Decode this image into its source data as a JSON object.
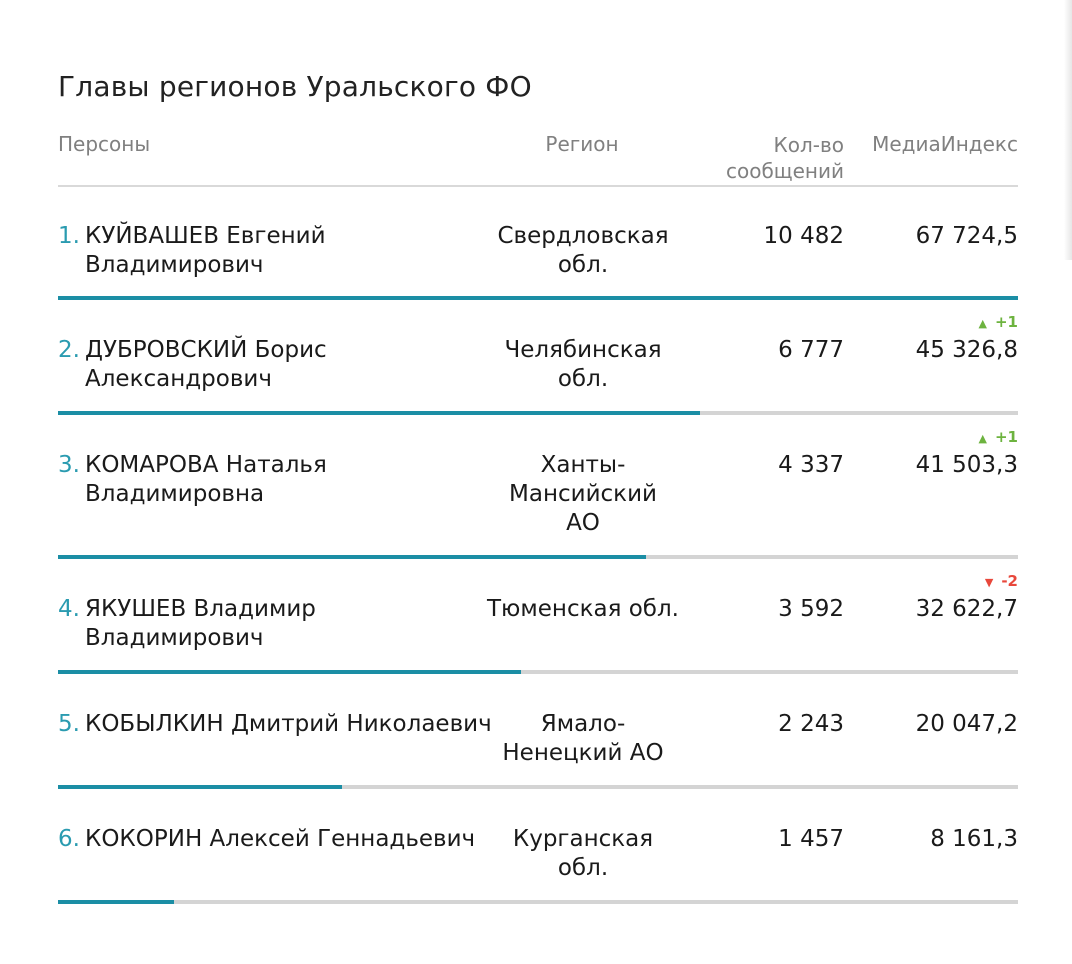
{
  "title": "Главы регионов Уральского ФО",
  "header": {
    "persons": "Персоны",
    "region": "Регион",
    "count": "Кол-во сообщений",
    "index": "МедиаИндекс"
  },
  "colors": {
    "accent": "#1b8ea5",
    "rank": "#2a9bb0",
    "up": "#6db33f",
    "down": "#e8473b",
    "bar_track": "#d4d4d4"
  },
  "rows": [
    {
      "rank": "1.",
      "name": "КУЙВАШЕВ Евгений Владимирович",
      "region": "Свердловская обл.",
      "count": "10 482",
      "index": "67 724,5",
      "delta": "",
      "delta_arrow": "",
      "bar_fraction": 1.0
    },
    {
      "rank": "2.",
      "name": "ДУБРОВСКИЙ Борис Александрович",
      "region": "Челябинская обл.",
      "count": "6 777",
      "index": "45 326,8",
      "delta": "+1",
      "delta_arrow": "▲",
      "bar_fraction": 0.669
    },
    {
      "rank": "3.",
      "name": "КОМАРОВА Наталья Владимировна",
      "region": "Ханты-Мансийский АО",
      "count": "4 337",
      "index": "41 503,3",
      "delta": "+1",
      "delta_arrow": "▲",
      "bar_fraction": 0.613
    },
    {
      "rank": "4.",
      "name": "ЯКУШЕВ Владимир Владимирович",
      "region": "Тюменская обл.",
      "count": "3 592",
      "index": "32 622,7",
      "delta": "-2",
      "delta_arrow": "▼",
      "bar_fraction": 0.482
    },
    {
      "rank": "5.",
      "name": "КОБЫЛКИН Дмитрий Николаевич",
      "region": "Ямало-Ненецкий АО",
      "count": "2 243",
      "index": "20 047,2",
      "delta": "",
      "delta_arrow": "",
      "bar_fraction": 0.296
    },
    {
      "rank": "6.",
      "name": "КОКОРИН Алексей Геннадьевич",
      "region": "Курганская обл.",
      "count": "1 457",
      "index": "8 161,3",
      "delta": "",
      "delta_arrow": "",
      "bar_fraction": 0.121
    }
  ]
}
